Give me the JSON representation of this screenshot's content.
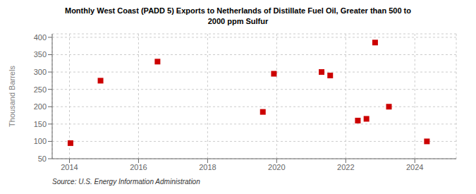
{
  "chart_data": {
    "type": "scatter",
    "title": "Monthly West Coast (PADD 5) Exports to Netherlands of Distillate Fuel Oil, Greater than 500 to\n2000 ppm Sulfur",
    "ylabel": "Thousand Barrels",
    "source": "Source: U.S. Energy Information Administration",
    "x": [
      2014.03,
      2014.9,
      2016.55,
      2019.6,
      2019.92,
      2021.3,
      2021.55,
      2022.35,
      2022.6,
      2022.85,
      2023.25,
      2024.35
    ],
    "values": [
      95,
      275,
      330,
      185,
      295,
      300,
      290,
      160,
      165,
      385,
      200,
      100
    ],
    "color": "#cc0000",
    "marker": "square",
    "xlim": [
      2013.5,
      2025.2
    ],
    "ylim": [
      50,
      410
    ],
    "xticks": [
      2014,
      2016,
      2018,
      2020,
      2022,
      2024
    ],
    "yticks": [
      50,
      100,
      150,
      200,
      250,
      300,
      350,
      400
    ],
    "grid": true
  }
}
